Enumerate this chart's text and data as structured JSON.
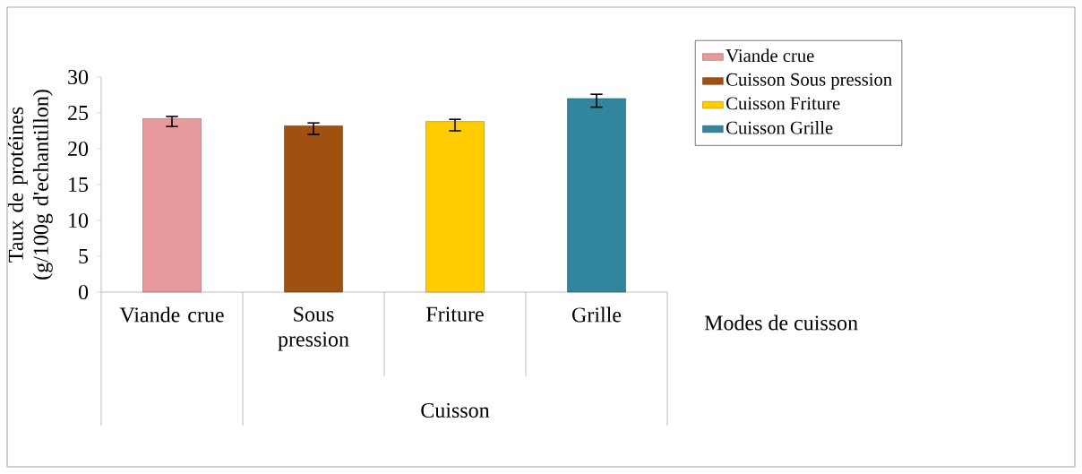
{
  "chart_data": {
    "type": "bar",
    "xlabel": "Modes de cuisson",
    "ylabel": "Taux de protéines (g/100g d'echantillon)",
    "categories": [
      "Viande crue",
      "Sous pression",
      "Friture",
      "Grille"
    ],
    "series": [
      {
        "name": "Viande crue",
        "color": "#e8999b",
        "values": [
          24.2,
          null,
          null,
          null
        ],
        "errors": [
          [
            23.1,
            24.5
          ],
          null,
          null,
          null
        ]
      },
      {
        "name": "Cuisson Sous pression",
        "color": "#a0500f",
        "values": [
          null,
          23.2,
          null,
          null
        ],
        "errors": [
          null,
          [
            22.0,
            23.6
          ],
          null,
          null
        ]
      },
      {
        "name": "Cuisson Friture",
        "color": "#ffcc00",
        "values": [
          null,
          null,
          23.8,
          null
        ],
        "errors": [
          null,
          null,
          [
            22.5,
            24.1
          ],
          null
        ]
      },
      {
        "name": "Cuisson Grille",
        "color": "#31859c",
        "values": [
          null,
          null,
          null,
          27.0
        ],
        "errors": [
          null,
          null,
          null,
          [
            25.8,
            27.6
          ]
        ]
      }
    ],
    "annotations": [
      "Cuisson"
    ],
    "ylim": [
      0,
      30
    ],
    "yticks": [
      0,
      5,
      10,
      15,
      20,
      25,
      30
    ],
    "legend": "right",
    "grid": false
  }
}
